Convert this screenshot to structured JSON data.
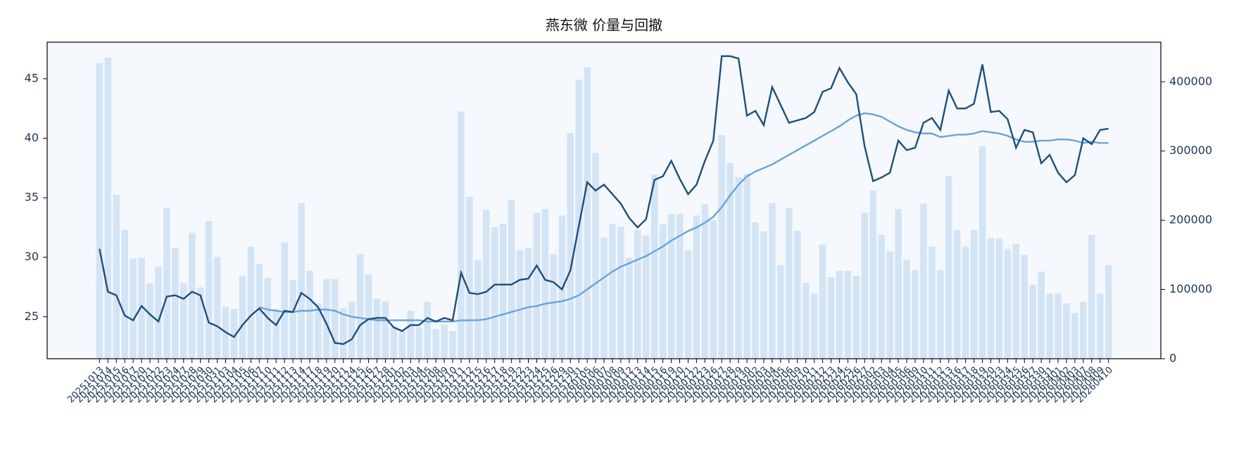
{
  "chart_data": {
    "type": "combo",
    "title": "燕东微 价量与回撤",
    "categories": [
      "20251013",
      "20251014",
      "20251015",
      "20251016",
      "20251017",
      "20251020",
      "20251021",
      "20251022",
      "20251023",
      "20251024",
      "20251027",
      "20251028",
      "20251029",
      "20251030",
      "20251031",
      "20251103",
      "20251104",
      "20251105",
      "20251106",
      "20251107",
      "20251110",
      "20251111",
      "20251112",
      "20251113",
      "20251114",
      "20251117",
      "20251118",
      "20251119",
      "20251120",
      "20251121",
      "20251124",
      "20251125",
      "20251126",
      "20251127",
      "20251128",
      "20251201",
      "20251202",
      "20251203",
      "20251204",
      "20251205",
      "20251208",
      "20251209",
      "20251210",
      "20251211",
      "20251212",
      "20251215",
      "20251216",
      "20251217",
      "20251218",
      "20251219",
      "20251222",
      "20251223",
      "20251224",
      "20251225",
      "20251226",
      "20251229",
      "20251230",
      "20251231",
      "20260105",
      "20260106",
      "20260107",
      "20260108",
      "20260109",
      "20260112",
      "20260113",
      "20260114",
      "20260115",
      "20260116",
      "20260119",
      "20260120",
      "20260121",
      "20260122",
      "20260123",
      "20260126",
      "20260127",
      "20260128",
      "20260129",
      "20260130",
      "20260202",
      "20260203",
      "20260204",
      "20260205",
      "20260206",
      "20260209",
      "20260210",
      "20260211",
      "20260212",
      "20260213",
      "20260224",
      "20260225",
      "20260226",
      "20260227",
      "20260302",
      "20260303",
      "20260304",
      "20260305",
      "20260306",
      "20260309",
      "20260310",
      "20260311",
      "20260312",
      "20260313",
      "20260316",
      "20260317",
      "20260318",
      "20260319",
      "20260320",
      "20260323",
      "20260324",
      "20260325",
      "20260326",
      "20260327",
      "20260330",
      "20260331",
      "20260401",
      "20260402",
      "20260403",
      "20260407",
      "20260408",
      "20260409",
      "20260410"
    ],
    "series": [
      {
        "type": "bar",
        "axis": "y2",
        "color": "#d3e4f5",
        "values": [
          427000,
          435000,
          237000,
          186000,
          145000,
          146000,
          109000,
          133000,
          218000,
          160000,
          109000,
          182000,
          103000,
          199000,
          147000,
          75000,
          72000,
          120000,
          162000,
          137000,
          117000,
          72000,
          168000,
          114000,
          225000,
          127000,
          80000,
          115000,
          115000,
          73000,
          82000,
          151000,
          122000,
          87000,
          83000,
          47000,
          40000,
          69000,
          46000,
          82000,
          43000,
          49000,
          40000,
          357000,
          234000,
          143000,
          215000,
          190000,
          195000,
          230000,
          157000,
          160000,
          211000,
          216000,
          151000,
          207000,
          326000,
          403000,
          421000,
          297000,
          175000,
          195000,
          191000,
          146000,
          186000,
          178000,
          266000,
          194000,
          209000,
          209000,
          157000,
          207000,
          223000,
          200000,
          323000,
          283000,
          262000,
          267000,
          197000,
          184000,
          225000,
          135000,
          218000,
          185000,
          110000,
          94000,
          165000,
          118000,
          127000,
          127000,
          120000,
          211000,
          243000,
          179000,
          155000,
          216000,
          143000,
          128000,
          224000,
          162000,
          128000,
          264000,
          186000,
          162000,
          186000,
          307000,
          174000,
          174000,
          159000,
          166000,
          150000,
          107000,
          126000,
          94000,
          94000,
          80000,
          66000,
          82000,
          179000,
          94000,
          135000
        ]
      },
      {
        "type": "line",
        "color": "#6aa3d5",
        "values": [
          null,
          null,
          null,
          null,
          null,
          null,
          null,
          null,
          null,
          null,
          null,
          null,
          null,
          null,
          null,
          null,
          null,
          null,
          null,
          25.8,
          25.6,
          25.5,
          25.4,
          25.4,
          25.5,
          25.5,
          25.6,
          25.6,
          25.5,
          25.2,
          25.0,
          24.9,
          24.8,
          24.7,
          24.7,
          24.7,
          24.7,
          24.7,
          24.7,
          24.6,
          24.6,
          24.6,
          24.6,
          24.7,
          24.7,
          24.7,
          24.8,
          25.0,
          25.2,
          25.4,
          25.6,
          25.8,
          25.9,
          26.1,
          26.2,
          26.3,
          26.5,
          26.8,
          27.3,
          27.8,
          28.3,
          28.8,
          29.2,
          29.5,
          29.8,
          30.1,
          30.5,
          30.9,
          31.4,
          31.8,
          32.2,
          32.5,
          32.9,
          33.4,
          34.2,
          35.2,
          36.1,
          36.8,
          37.2,
          37.5,
          37.8,
          38.2,
          38.6,
          39.0,
          39.4,
          39.8,
          40.2,
          40.6,
          41.0,
          41.5,
          41.9,
          42.1,
          42.0,
          41.8,
          41.4,
          41.0,
          40.7,
          40.5,
          40.4,
          40.4,
          40.1,
          40.2,
          40.3,
          40.3,
          40.4,
          40.6,
          40.5,
          40.4,
          40.2,
          39.9,
          39.7,
          39.7,
          39.8,
          39.8,
          39.9,
          39.9,
          39.8,
          39.6,
          39.7,
          39.6,
          39.6
        ]
      },
      {
        "type": "line",
        "color": "#1f4e79",
        "values": [
          30.7,
          27.1,
          26.8,
          25.1,
          24.7,
          25.9,
          25.2,
          24.6,
          26.7,
          26.8,
          26.5,
          27.1,
          26.8,
          24.5,
          24.2,
          23.7,
          23.3,
          24.3,
          25.1,
          25.7,
          24.9,
          24.3,
          25.5,
          25.4,
          27.0,
          26.5,
          25.8,
          24.4,
          22.8,
          22.7,
          23.1,
          24.3,
          24.8,
          24.9,
          24.9,
          24.1,
          23.8,
          24.3,
          24.3,
          24.9,
          24.6,
          24.9,
          24.7,
          28.7,
          27.0,
          26.9,
          27.1,
          27.7,
          27.7,
          27.7,
          28.1,
          28.2,
          29.3,
          28.1,
          27.9,
          27.3,
          28.9,
          32.6,
          36.3,
          35.6,
          36.1,
          35.3,
          34.5,
          33.3,
          32.5,
          33.2,
          36.5,
          36.8,
          38.1,
          36.6,
          35.3,
          36.1,
          38.1,
          39.8,
          46.9,
          46.9,
          46.7,
          41.9,
          42.3,
          41.1,
          44.3,
          42.8,
          41.3,
          41.5,
          41.7,
          42.2,
          43.9,
          44.2,
          45.9,
          44.7,
          43.7,
          39.3,
          36.4,
          36.7,
          37.1,
          39.8,
          39.0,
          39.2,
          41.3,
          41.7,
          40.7,
          44.0,
          42.5,
          42.5,
          42.9,
          46.2,
          42.2,
          42.3,
          41.6,
          39.2,
          40.7,
          40.5,
          37.9,
          38.6,
          37.1,
          36.3,
          36.9,
          40.0,
          39.5,
          40.7,
          40.8
        ]
      }
    ],
    "ylim": [
      21.47,
      48.07
    ],
    "yticks": [
      25,
      30,
      35,
      40,
      45
    ],
    "y2lim": [
      0,
      457143
    ],
    "y2ticks": [
      0,
      100000,
      200000,
      300000,
      400000
    ],
    "background": "#f5f9fe"
  }
}
